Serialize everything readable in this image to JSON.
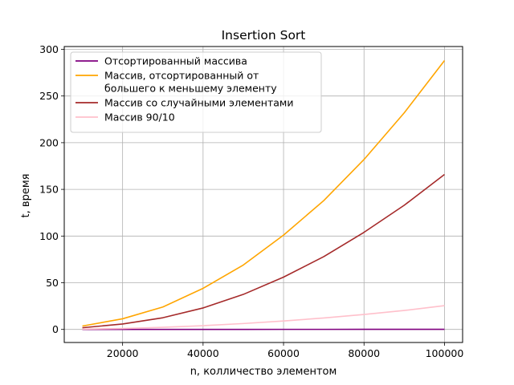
{
  "chart_data": {
    "type": "line",
    "title": "Insertion Sort",
    "xlabel": "n, колличество элементом",
    "ylabel": "t, время",
    "xlim": [
      5500,
      104500
    ],
    "ylim": [
      -14,
      303
    ],
    "xticks": [
      20000,
      40000,
      60000,
      80000,
      100000
    ],
    "yticks": [
      0,
      50,
      100,
      150,
      200,
      250,
      300
    ],
    "grid": true,
    "legend_position": "top-left",
    "x": [
      10000,
      20000,
      30000,
      40000,
      50000,
      60000,
      70000,
      80000,
      90000,
      100000
    ],
    "series": [
      {
        "name": "Отсортированный массива",
        "color": "#800080",
        "values": [
          0.01,
          0.02,
          0.03,
          0.04,
          0.05,
          0.06,
          0.07,
          0.08,
          0.09,
          0.1
        ]
      },
      {
        "name": "Массив, отсортированный от\nбольшего к меньшему элементу",
        "color": "#ffa500",
        "values": [
          3.6,
          11.4,
          24.0,
          44.0,
          69.0,
          101.0,
          138.0,
          182.0,
          232.0,
          288.0
        ]
      },
      {
        "name": "Массив со случайными элементами",
        "color": "#a52a2a",
        "values": [
          1.8,
          5.8,
          12.5,
          23.0,
          37.5,
          56.0,
          78.0,
          104.0,
          133.0,
          166.0
        ]
      },
      {
        "name": "Массив 90/10",
        "color": "#ffc0cb",
        "values": [
          0.3,
          1.0,
          2.3,
          4.0,
          6.3,
          9.0,
          12.3,
          16.0,
          20.3,
          25.5
        ]
      }
    ]
  }
}
